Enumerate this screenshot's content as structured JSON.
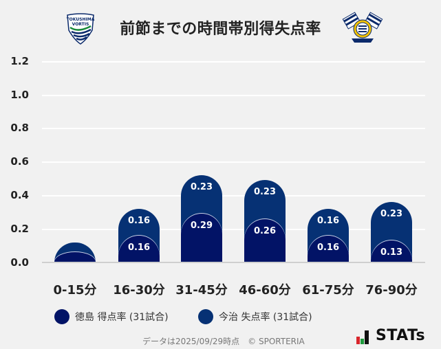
{
  "header": {
    "title": "前節までの時間帯別得失点率",
    "left_logo": "TOKUSHIMA VORTIS",
    "right_logo": "FC IMABARI"
  },
  "legend": {
    "home": {
      "label": "徳島 得点率 (31試合)",
      "color": "#021366"
    },
    "away": {
      "label": "今治 失点率 (31試合)",
      "color": "#063174"
    }
  },
  "footer": {
    "note": "データは2025/09/29時点　© SPORTERIA",
    "brand": "STATs"
  },
  "chart_data": {
    "type": "bar",
    "stacked": true,
    "title": "前節までの時間帯別得失点率",
    "xlabel": "",
    "ylabel": "",
    "ylim": [
      0,
      1.2
    ],
    "yticks": [
      "1.2",
      "1.0",
      "0.8",
      "0.6",
      "0.4",
      "0.2",
      "0.0"
    ],
    "categories": [
      "0-15分",
      "16-30分",
      "31-45分",
      "46-60分",
      "61-75分",
      "76-90分"
    ],
    "series": [
      {
        "name": "徳島 得点率 (31試合)",
        "color": "#021366",
        "values": [
          0.06,
          0.16,
          0.29,
          0.26,
          0.16,
          0.13
        ],
        "labels": [
          "",
          "0.16",
          "0.29",
          "0.26",
          "0.16",
          "0.13"
        ]
      },
      {
        "name": "今治 失点率 (31試合)",
        "color": "#063174",
        "values": [
          0.06,
          0.16,
          0.23,
          0.23,
          0.16,
          0.23
        ],
        "labels": [
          "",
          "0.16",
          "0.23",
          "0.23",
          "0.16",
          "0.23"
        ]
      }
    ],
    "grid": true,
    "legend_position": "bottom"
  }
}
